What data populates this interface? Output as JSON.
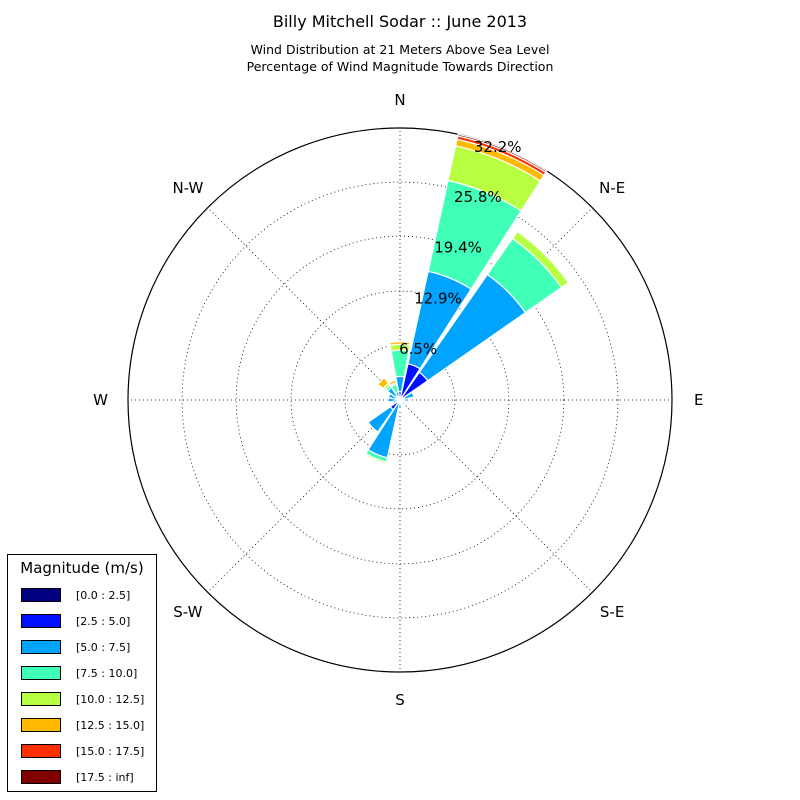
{
  "title": "Billy Mitchell Sodar :: June 2013",
  "subtitle_line1": "Wind Distribution at 21 Meters Above Sea Level",
  "subtitle_line2": "Percentage of Wind Magnitude Towards Direction",
  "chart_data": {
    "type": "windrose",
    "title": "Billy Mitchell Sodar :: June 2013",
    "subtitle": [
      "Wind Distribution at 21 Meters Above Sea Level",
      "Percentage of Wind Magnitude Towards Direction"
    ],
    "units": "%",
    "direction_labels": [
      "N",
      "N-E",
      "E",
      "S-E",
      "S",
      "S-W",
      "W",
      "N-W"
    ],
    "radial_ticks": [
      "6.5%",
      "12.9%",
      "19.4%",
      "25.8%",
      "32.2%"
    ],
    "radial_tick_values": [
      6.5,
      12.9,
      19.4,
      25.8,
      32.2
    ],
    "rmax": 32.2,
    "grid": true,
    "legend_title": "Magnitude (m/s)",
    "legend_position": "lower-left",
    "bins": [
      {
        "label": "[0.0 : 2.5]",
        "color": "#000080"
      },
      {
        "label": "[2.5 : 5.0]",
        "color": "#0010ff"
      },
      {
        "label": "[5.0 : 7.5]",
        "color": "#00a4ff"
      },
      {
        "label": "[7.5 : 10.0]",
        "color": "#40ffb7"
      },
      {
        "label": "[10.0 : 12.5]",
        "color": "#b7ff40"
      },
      {
        "label": "[12.5 : 15.0]",
        "color": "#ffb900"
      },
      {
        "label": "[15.0 : 17.5]",
        "color": "#ff3000"
      },
      {
        "label": "[17.5 : inf]",
        "color": "#800000"
      }
    ],
    "sector_width_deg": 22.5,
    "directions_deg": [
      0,
      22.5,
      45,
      67.5,
      90,
      112.5,
      135,
      157.5,
      180,
      202.5,
      225,
      247.5,
      270,
      292.5,
      315,
      337.5
    ],
    "cumulative_percent": [
      [
        0.0,
        1.0,
        2.8,
        5.9,
        6.6,
        6.9,
        6.9,
        6.9
      ],
      [
        0.1,
        4.4,
        15.6,
        26.6,
        30.8,
        31.6,
        32.0,
        32.2
      ],
      [
        0.1,
        4.0,
        18.1,
        23.3,
        24.3,
        24.3,
        24.3,
        24.3
      ],
      [
        0.0,
        0.5,
        1.7,
        1.8,
        1.8,
        1.8,
        1.8,
        1.8
      ],
      [
        0.0,
        0.5,
        1.0,
        1.0,
        1.0,
        1.0,
        1.0,
        1.0
      ],
      [
        0.0,
        0.2,
        0.4,
        0.4,
        0.4,
        0.4,
        0.4,
        0.4
      ],
      [
        0.0,
        0.3,
        0.7,
        0.7,
        0.7,
        0.7,
        0.7,
        0.7
      ],
      [
        0.0,
        0.2,
        0.5,
        0.5,
        0.5,
        0.5,
        0.5,
        0.5
      ],
      [
        0.0,
        0.3,
        1.0,
        1.0,
        1.0,
        1.0,
        1.0,
        1.0
      ],
      [
        0.0,
        0.3,
        7.0,
        7.5,
        7.7,
        7.7,
        7.7,
        7.7
      ],
      [
        0.0,
        1.4,
        4.6,
        4.6,
        4.6,
        4.6,
        4.6,
        4.6
      ],
      [
        0.0,
        0.3,
        0.8,
        0.8,
        0.8,
        0.8,
        0.8,
        0.8
      ],
      [
        0.0,
        0.3,
        1.4,
        1.4,
        1.4,
        1.4,
        1.4,
        1.4
      ],
      [
        0.0,
        0.3,
        1.4,
        1.5,
        1.5,
        1.5,
        1.5,
        1.5
      ],
      [
        0.0,
        0.6,
        1.8,
        2.1,
        2.4,
        3.2,
        3.2,
        3.2
      ],
      [
        0.0,
        0.2,
        1.0,
        1.9,
        2.1,
        2.4,
        2.4,
        2.4
      ]
    ]
  }
}
